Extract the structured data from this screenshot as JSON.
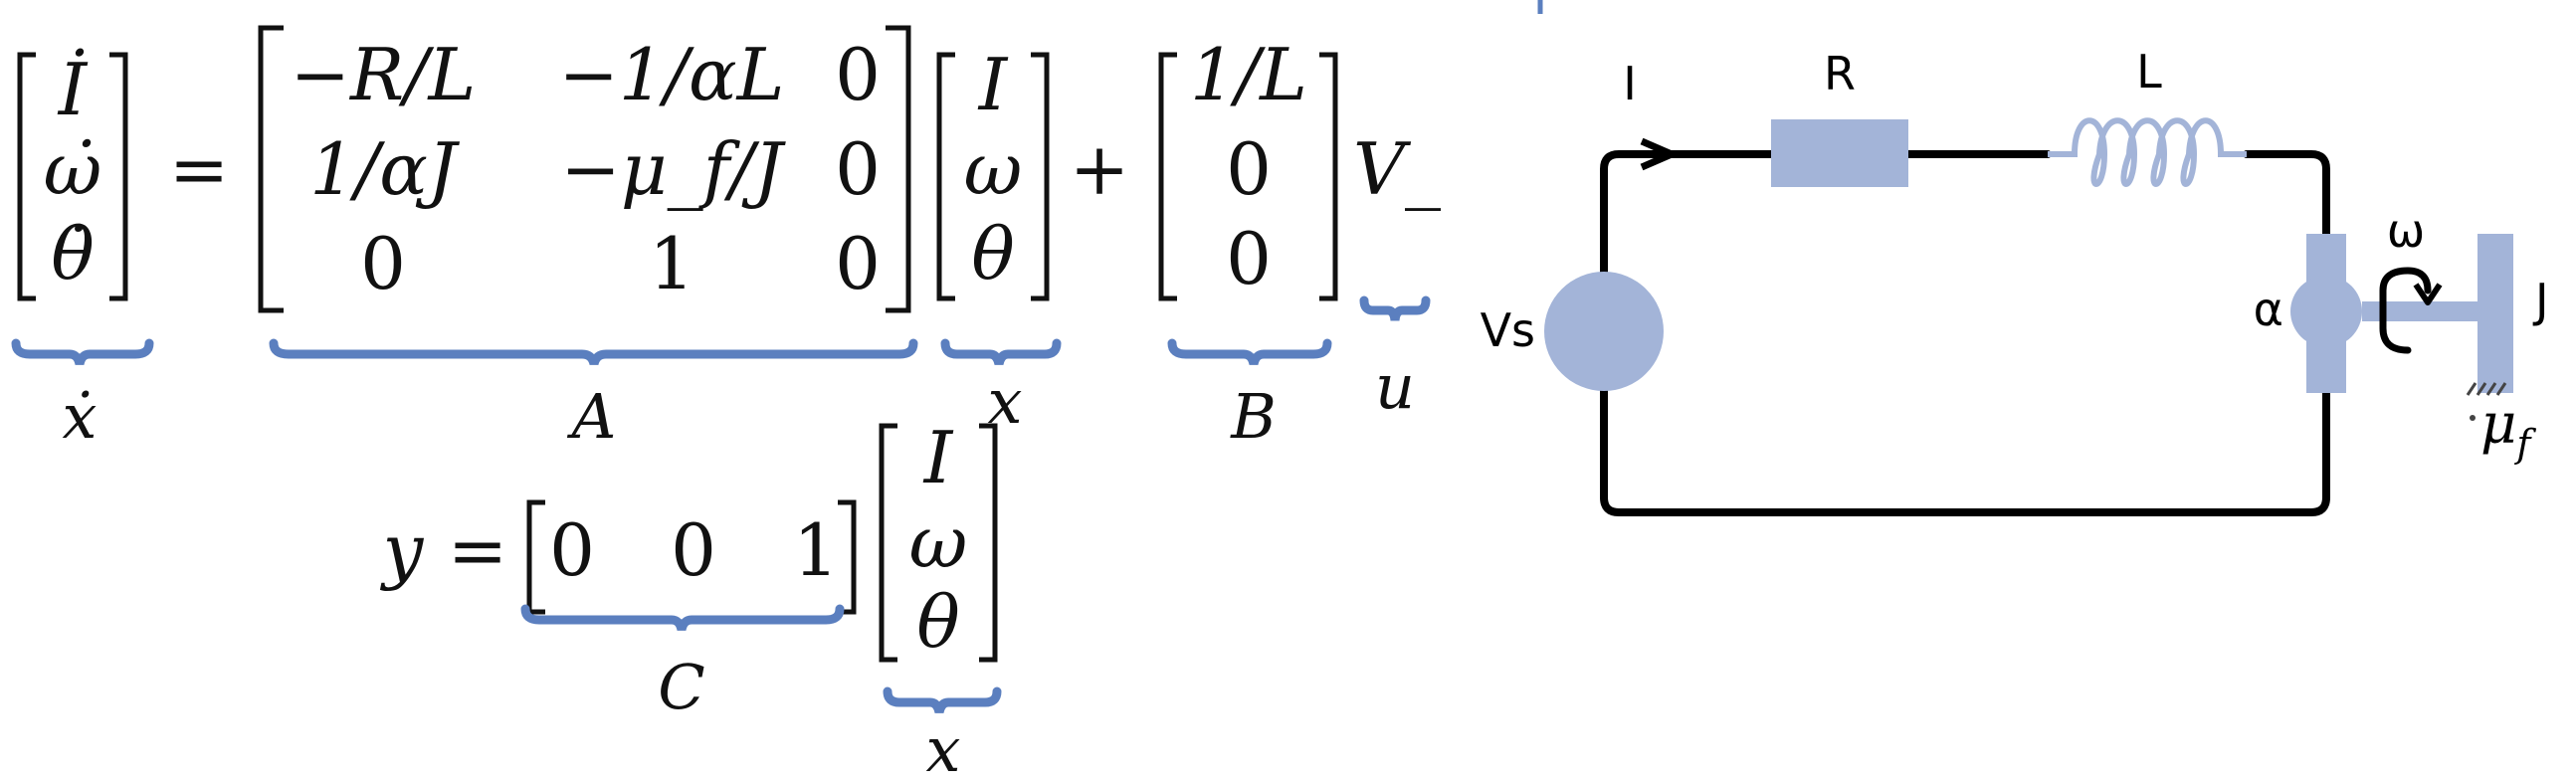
{
  "state_equation": {
    "lhs": [
      "İ",
      "ω̇",
      "θ̇"
    ],
    "equals": "=",
    "A": [
      [
        "−R/L",
        "−1/αL",
        "0"
      ],
      [
        "1/αJ",
        "−μ_f/J",
        "0"
      ],
      [
        "0",
        "1",
        "0"
      ]
    ],
    "x": [
      "I",
      "ω",
      "θ"
    ],
    "plus": "+",
    "B": [
      "1/L",
      "0",
      "0"
    ],
    "input": "V_S",
    "labels": {
      "xdot": "ẋ",
      "A": "A",
      "x": "x",
      "B": "B",
      "u": "u"
    }
  },
  "output_equation": {
    "lhs": "y",
    "equals": "=",
    "C": [
      "0",
      "0",
      "1"
    ],
    "x": [
      "I",
      "ω",
      "θ"
    ],
    "labels": {
      "C": "C",
      "x": "x"
    }
  },
  "circuit": {
    "current_label": "I",
    "resistor_label": "R",
    "inductor_label": "L",
    "source_label": "Vs",
    "motor_label": "α",
    "speed_label": "ω",
    "inertia_label": "J",
    "friction_label": "μ_f"
  },
  "colors": {
    "accent": "#5b7fbf",
    "component": "#a3b4d8",
    "wire": "#000000"
  }
}
